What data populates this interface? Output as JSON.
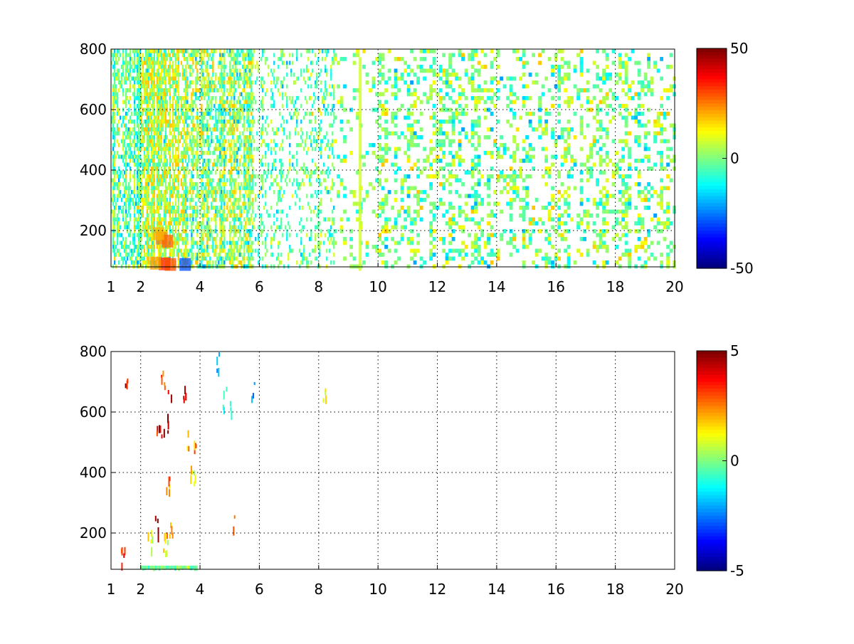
{
  "chart_data": [
    {
      "type": "heatmap",
      "title": "",
      "xlabel": "",
      "ylabel": "",
      "xlim": [
        1,
        20
      ],
      "ylim": [
        80,
        800
      ],
      "x_ticks": [
        1,
        2,
        4,
        6,
        8,
        10,
        12,
        14,
        16,
        18,
        20
      ],
      "y_ticks": [
        200,
        400,
        600,
        800
      ],
      "grid": true,
      "colormap": "jet",
      "colorbar": {
        "min": -50,
        "max": 50,
        "ticks": [
          50,
          0,
          -50
        ]
      },
      "bands": [
        {
          "x0": 1.0,
          "x1": 2.0,
          "density": 0.55,
          "mean": -3,
          "spread": 9
        },
        {
          "x0": 2.0,
          "x1": 3.5,
          "density": 0.7,
          "mean": 6,
          "spread": 10
        },
        {
          "x0": 3.5,
          "x1": 5.8,
          "density": 0.55,
          "mean": 2,
          "spread": 11
        },
        {
          "x0": 5.8,
          "x1": 8.5,
          "density": 0.22,
          "mean": -3,
          "spread": 8
        },
        {
          "x0": 8.5,
          "x1": 10.0,
          "density": 0.12,
          "mean": 0,
          "spread": 8
        },
        {
          "x0": 10.0,
          "x1": 20.0,
          "density": 0.3,
          "mean": 0,
          "spread": 9
        }
      ],
      "hotspots": [
        {
          "x": 2.7,
          "y": 175,
          "value": 25
        },
        {
          "x": 2.9,
          "y": 165,
          "value": 28
        },
        {
          "x": 2.6,
          "y": 190,
          "value": 20
        },
        {
          "x": 2.8,
          "y": 90,
          "value": 35
        },
        {
          "x": 3.0,
          "y": 88,
          "value": 30
        },
        {
          "x": 2.5,
          "y": 92,
          "value": 22
        },
        {
          "x": 3.5,
          "y": 88,
          "value": -30
        },
        {
          "x": 9.4,
          "y": 420,
          "value": 8
        }
      ]
    },
    {
      "type": "heatmap",
      "title": "",
      "xlabel": "",
      "ylabel": "",
      "xlim": [
        1,
        20
      ],
      "ylim": [
        80,
        800
      ],
      "x_ticks": [
        1,
        2,
        4,
        6,
        8,
        10,
        12,
        14,
        16,
        18,
        20
      ],
      "y_ticks": [
        200,
        400,
        600,
        800
      ],
      "grid": true,
      "colormap": "jet",
      "colorbar": {
        "min": -5,
        "max": 5,
        "ticks": [
          5,
          0,
          -5
        ]
      },
      "points": [
        {
          "x": 1.5,
          "y": 685,
          "value": 4
        },
        {
          "x": 1.4,
          "y": 125,
          "value": 3
        },
        {
          "x": 2.3,
          "y": 185,
          "value": 1
        },
        {
          "x": 2.55,
          "y": 230,
          "value": 5
        },
        {
          "x": 2.6,
          "y": 560,
          "value": 4
        },
        {
          "x": 2.7,
          "y": 530,
          "value": 5
        },
        {
          "x": 2.75,
          "y": 720,
          "value": 3
        },
        {
          "x": 2.8,
          "y": 180,
          "value": 2
        },
        {
          "x": 2.85,
          "y": 170,
          "value": 1
        },
        {
          "x": 2.9,
          "y": 560,
          "value": 5
        },
        {
          "x": 2.95,
          "y": 680,
          "value": 4
        },
        {
          "x": 2.9,
          "y": 360,
          "value": 3
        },
        {
          "x": 3.0,
          "y": 200,
          "value": 2
        },
        {
          "x": 3.5,
          "y": 660,
          "value": 4
        },
        {
          "x": 3.6,
          "y": 520,
          "value": 2
        },
        {
          "x": 3.7,
          "y": 420,
          "value": 2
        },
        {
          "x": 3.8,
          "y": 380,
          "value": 1
        },
        {
          "x": 3.8,
          "y": 470,
          "value": 3
        },
        {
          "x": 4.6,
          "y": 765,
          "value": -2
        },
        {
          "x": 4.8,
          "y": 650,
          "value": -1
        },
        {
          "x": 5.0,
          "y": 620,
          "value": -1
        },
        {
          "x": 5.1,
          "y": 235,
          "value": 3
        },
        {
          "x": 5.8,
          "y": 665,
          "value": -2
        },
        {
          "x": 8.2,
          "y": 655,
          "value": 1
        }
      ],
      "floor_strip": {
        "x0": 2.0,
        "x1": 3.9,
        "y": 85,
        "value": 0
      }
    }
  ]
}
